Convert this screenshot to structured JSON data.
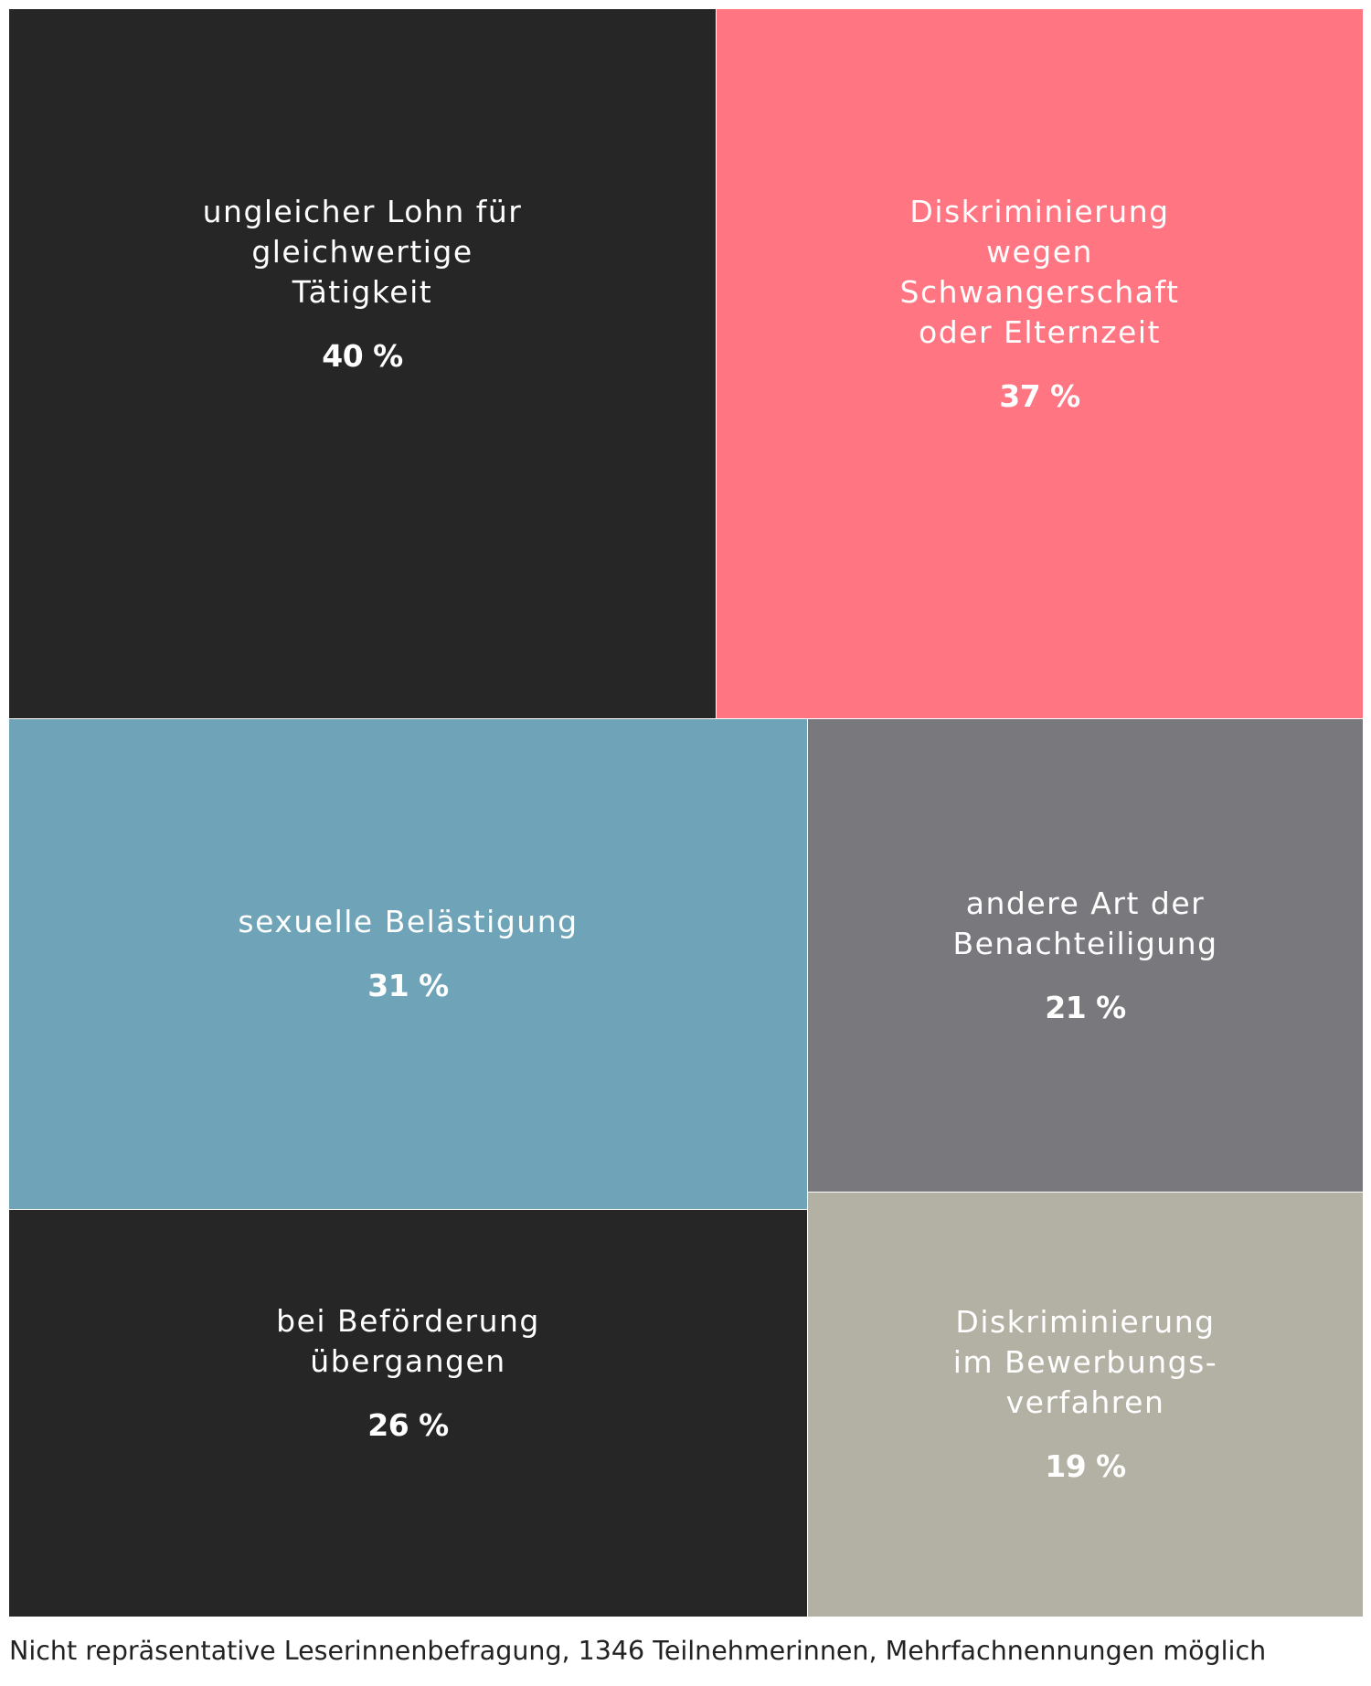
{
  "chart_data": {
    "type": "treemap",
    "title": "",
    "items": [
      {
        "label": "ungleicher Lohn für\ngleichwertige\nTätigkeit",
        "value": 40,
        "value_label": "40 %",
        "color": "#262626"
      },
      {
        "label": "Diskriminierung\nwegen\nSchwangerschaft\noder Elternzeit",
        "value": 37,
        "value_label": "37 %",
        "color": "#ff7682"
      },
      {
        "label": "sexuelle Belästigung",
        "value": 31,
        "value_label": "31 %",
        "color": "#6fa4b8"
      },
      {
        "label": "andere Art der\nBenachteiligung",
        "value": 21,
        "value_label": "21 %",
        "color": "#79787d"
      },
      {
        "label": "bei Beförderung\nübergangen",
        "value": 26,
        "value_label": "26 %",
        "color": "#262626"
      },
      {
        "label": "Diskriminierung\nim Bewerbungs-\nverfahren",
        "value": 19,
        "value_label": "19 %",
        "color": "#b3b0a4"
      }
    ]
  },
  "footnote": "Nicht repräsentative Leserinnenbefragung, 1346 Teilnehmerinnen, Mehrfachnennungen möglich"
}
